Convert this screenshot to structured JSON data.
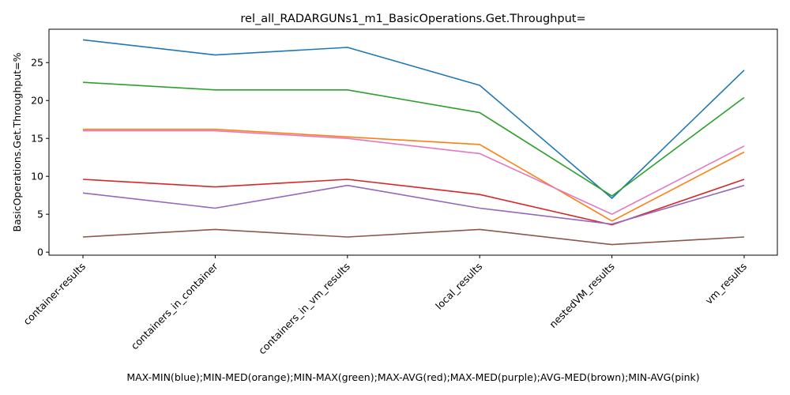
{
  "chart_data": {
    "type": "line",
    "title": "rel_all_RADARGUNs1_m1_BasicOperations.Get.Throughput=",
    "xlabel": "MAX-MIN(blue);MIN-MED(orange);MIN-MAX(green);MAX-AVG(red);MAX-MED(purple);AVG-MED(brown);MIN-AVG(pink)",
    "ylabel": "BasicOperations.Get.Throughput=%",
    "categories": [
      "container-results",
      "containers_in_container",
      "containers_in_vm_results",
      "local_results",
      "nestedVM_results",
      "vm_results"
    ],
    "ylim": [
      -0.4,
      29.4
    ],
    "yticks": [
      0,
      5,
      10,
      15,
      20,
      25
    ],
    "grid": false,
    "legend": "none",
    "series": [
      {
        "color": "#1f77b4",
        "values": [
          28.0,
          26.0,
          27.0,
          22.0,
          7.1,
          24.0
        ]
      },
      {
        "color": "#ff7f0e",
        "values": [
          16.2,
          16.2,
          15.2,
          14.2,
          4.1,
          13.2
        ]
      },
      {
        "color": "#2ca02c",
        "values": [
          22.4,
          21.4,
          21.4,
          18.4,
          7.4,
          20.4
        ]
      },
      {
        "color": "#d62728",
        "values": [
          9.6,
          8.6,
          9.6,
          7.6,
          3.6,
          9.6
        ]
      },
      {
        "color": "#9467bd",
        "values": [
          7.8,
          5.8,
          8.8,
          5.8,
          3.7,
          8.8
        ]
      },
      {
        "color": "#8c564b",
        "values": [
          2.0,
          3.0,
          2.0,
          3.0,
          1.0,
          2.0
        ]
      },
      {
        "color": "#e377c2",
        "values": [
          16.0,
          16.0,
          15.0,
          13.0,
          5.0,
          14.0
        ]
      }
    ]
  }
}
